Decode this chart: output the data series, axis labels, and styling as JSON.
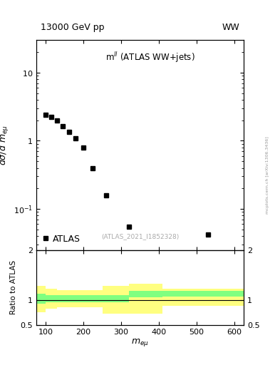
{
  "title_left": "13000 GeV pp",
  "title_right": "WW",
  "annotation": "m$^{ll}$ (ATLAS WW+jets)",
  "watermark": "(ATLAS_2021_I1852328)",
  "right_label": "mcplots.cern.ch [arXiv:1306.3436]",
  "main_ylabel": "dσ/d m_{εμ}",
  "ratio_ylabel": "Ratio to ATLAS",
  "ratio_xlabel": "m_emu",
  "xlim": [
    75,
    625
  ],
  "main_ylim_log": [
    0.025,
    30
  ],
  "ratio_ylim": [
    0.5,
    2.0
  ],
  "data_x": [
    100,
    115,
    130,
    145,
    162,
    178,
    200,
    225,
    260,
    320,
    530
  ],
  "data_y": [
    2.4,
    2.25,
    2.0,
    1.65,
    1.35,
    1.1,
    0.8,
    0.4,
    0.16,
    0.055,
    0.042
  ],
  "marker_color": "#000000",
  "marker_size": 4.5,
  "legend_label": "ATLAS",
  "ratio_x_edges": [
    75,
    100,
    130,
    160,
    200,
    250,
    320,
    410,
    530,
    625
  ],
  "ratio_green_lo": [
    0.93,
    0.95,
    0.95,
    0.95,
    0.95,
    0.95,
    1.05,
    1.07,
    1.07
  ],
  "ratio_green_hi": [
    1.12,
    1.1,
    1.1,
    1.1,
    1.1,
    1.1,
    1.18,
    1.18,
    1.18
  ],
  "ratio_yellow_lo": [
    0.75,
    0.82,
    0.85,
    0.85,
    0.85,
    0.72,
    0.72,
    0.88,
    0.88
  ],
  "ratio_yellow_hi": [
    1.28,
    1.22,
    1.2,
    1.2,
    1.2,
    1.28,
    1.32,
    1.22,
    1.22
  ],
  "green_color": "#80ff80",
  "yellow_color": "#ffff80",
  "ratio_line": 1.0
}
